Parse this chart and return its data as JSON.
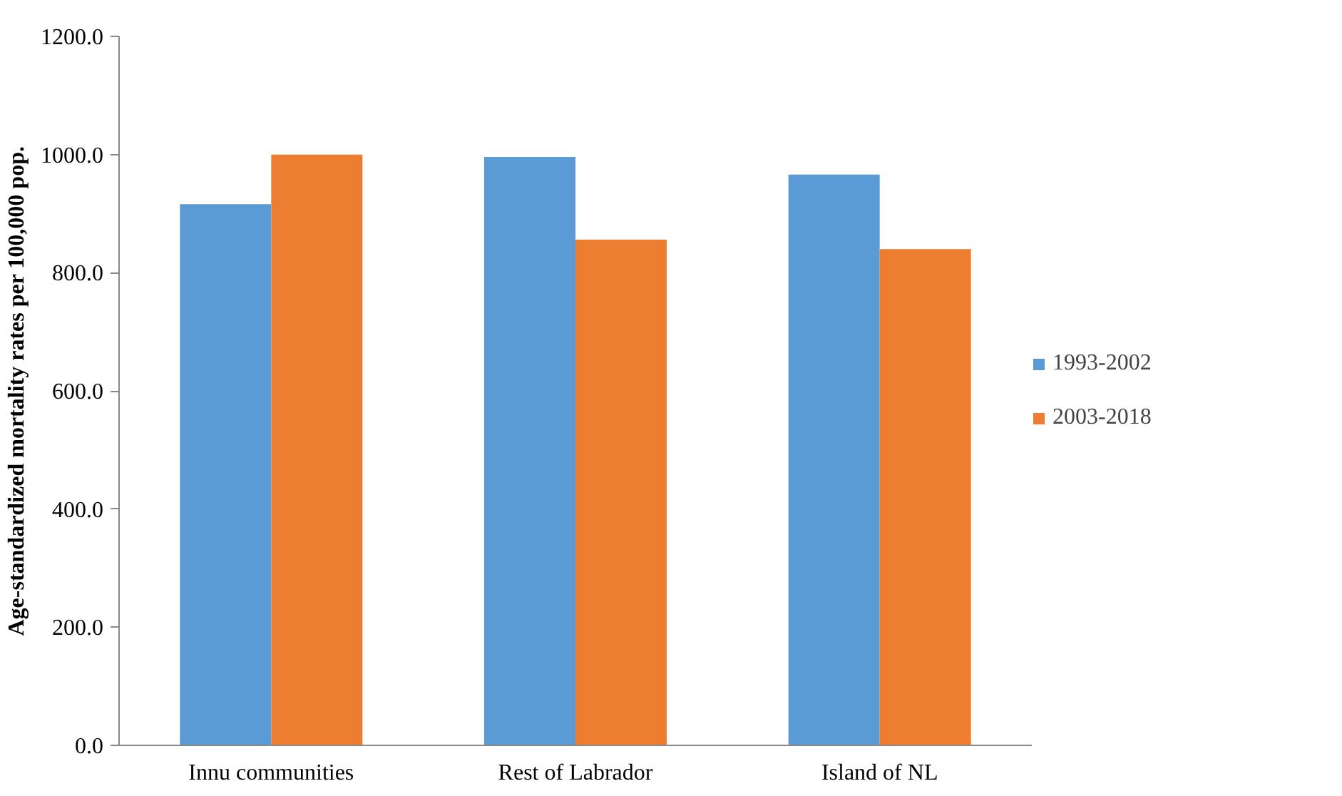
{
  "chart_data": {
    "type": "bar",
    "ylabel": "Age-standardized mortality rates per 100,000 pop.",
    "categories": [
      "Innu communities",
      "Rest of Labrador",
      "Island of NL"
    ],
    "series": [
      {
        "name": "1993-2002",
        "color": "#5b9bd5",
        "values": [
          916,
          996,
          966
        ]
      },
      {
        "name": "2003-2018",
        "color": "#ed7d31",
        "values": [
          1000,
          856,
          840
        ]
      }
    ],
    "ylim": [
      0,
      1200
    ],
    "yticks": [
      {
        "value": 0,
        "label": "0.0"
      },
      {
        "value": 200,
        "label": "200.0"
      },
      {
        "value": 400,
        "label": "400.0"
      },
      {
        "value": 600,
        "label": "600.0"
      },
      {
        "value": 800,
        "label": "800.0"
      },
      {
        "value": 1000,
        "label": "1000.0"
      },
      {
        "value": 1200,
        "label": "1200.0"
      }
    ],
    "grid": false,
    "legend": "right"
  }
}
